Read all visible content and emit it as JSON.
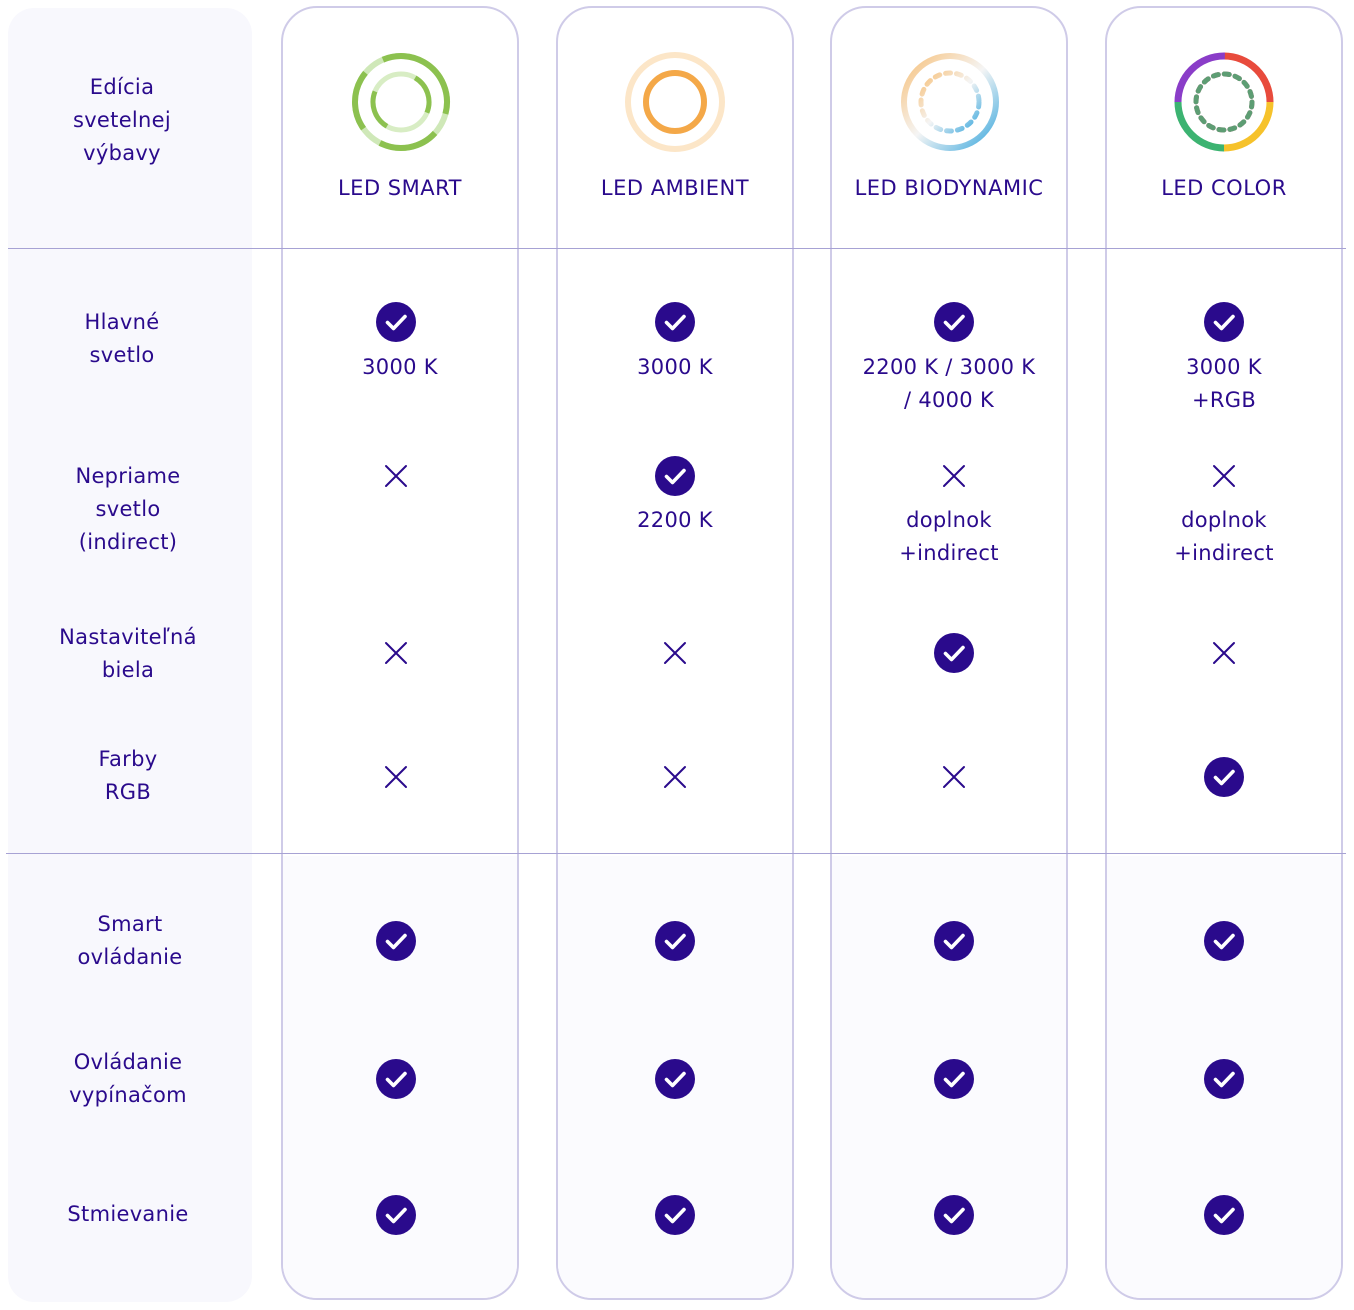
{
  "header": {
    "label": [
      "Edícia",
      "svetelnej",
      "výbavy"
    ]
  },
  "columns": [
    {
      "title": "LED SMART",
      "logo": "smart-ring-icon",
      "main_value": [
        "3000 K"
      ],
      "indirect_value": []
    },
    {
      "title": "LED AMBIENT",
      "logo": "ambient-ring-icon",
      "main_value": [
        "3000 K"
      ],
      "indirect_value": [
        "2200 K"
      ]
    },
    {
      "title": "LED BIODYNAMIC",
      "logo": "biodynamic-ring-icon",
      "main_value": [
        "2200 K / 3000 K",
        "/ 4000 K"
      ],
      "indirect_value": [
        "doplnok",
        "+indirect"
      ]
    },
    {
      "title": "LED COLOR",
      "logo": "color-ring-icon",
      "main_value": [
        "3000 K",
        "+RGB"
      ],
      "indirect_value": [
        "doplnok",
        "+indirect"
      ]
    }
  ],
  "rows": [
    {
      "label": [
        "Hlavné",
        "svetlo"
      ],
      "values": [
        true,
        true,
        true,
        true
      ]
    },
    {
      "label": [
        "Nepriame",
        "svetlo",
        "(indirect)"
      ],
      "values": [
        false,
        true,
        false,
        false
      ]
    },
    {
      "label": [
        "Nastaviteľná",
        "biela"
      ],
      "values": [
        false,
        false,
        true,
        false
      ]
    },
    {
      "label": [
        "Farby",
        "RGB"
      ],
      "values": [
        false,
        false,
        false,
        true
      ]
    },
    {
      "label": [
        "Smart",
        "ovládanie"
      ],
      "values": [
        true,
        true,
        true,
        true
      ]
    },
    {
      "label": [
        "Ovládanie",
        "vypínačom"
      ],
      "values": [
        true,
        true,
        true,
        true
      ]
    },
    {
      "label": [
        "Stmievanie"
      ],
      "values": [
        true,
        true,
        true,
        true
      ]
    }
  ],
  "colors": {
    "accent": "#2a0a8c",
    "border": "#cfcbe8",
    "divider": "#a7a2d4",
    "label_bg": "#f8f8fd"
  }
}
